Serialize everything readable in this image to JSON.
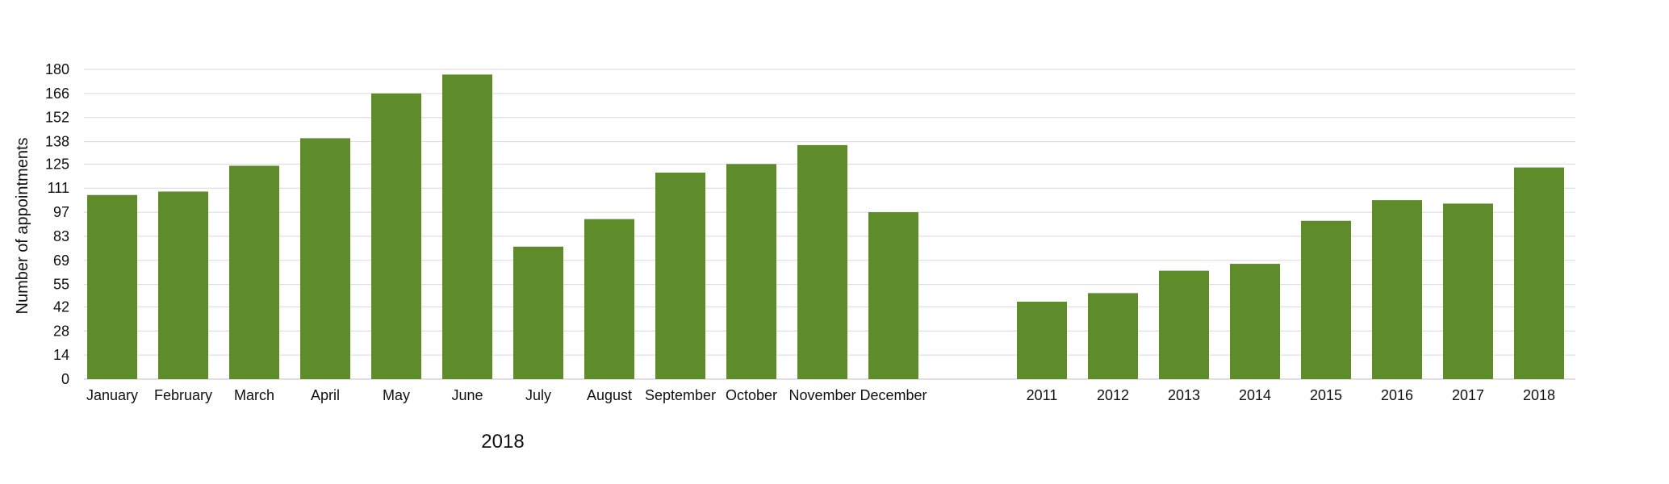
{
  "chart_data": {
    "type": "bar",
    "ylabel": "Number of appointments",
    "yticks": [
      "0",
      "14",
      "28",
      "42",
      "55",
      "69",
      "83",
      "97",
      "111",
      "125",
      "138",
      "152",
      "166",
      "180"
    ],
    "ylim": [
      0,
      180
    ],
    "grid": true,
    "bar_color": "#5e8c2b",
    "groups": [
      {
        "label": "2018",
        "categories": [
          "January",
          "February",
          "March",
          "April",
          "May",
          "June",
          "July",
          "August",
          "September",
          "October",
          "November",
          "December"
        ],
        "values": [
          107,
          109,
          124,
          140,
          166,
          177,
          77,
          93,
          120,
          125,
          136,
          97
        ]
      },
      {
        "label": "",
        "categories": [
          "2011",
          "2012",
          "2013",
          "2014",
          "2015",
          "2016",
          "2017",
          "2018"
        ],
        "values": [
          45,
          50,
          63,
          67,
          92,
          104,
          102,
          123
        ]
      }
    ]
  }
}
